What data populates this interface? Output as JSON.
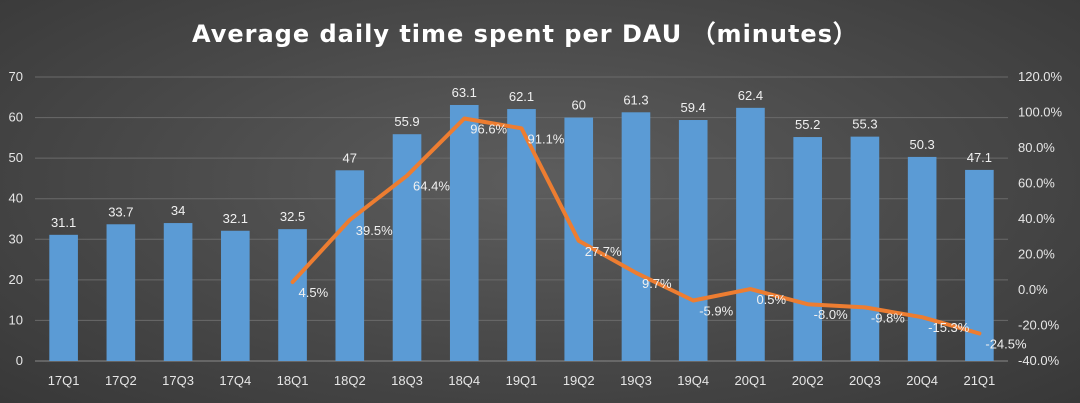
{
  "chart_data": {
    "type": "bar",
    "title": "Average daily time spent per DAU （minutes）",
    "categories": [
      "17Q1",
      "17Q2",
      "17Q3",
      "17Q4",
      "18Q1",
      "18Q2",
      "18Q3",
      "18Q4",
      "19Q1",
      "19Q2",
      "19Q3",
      "19Q4",
      "20Q1",
      "20Q2",
      "20Q3",
      "20Q4",
      "21Q1"
    ],
    "series": [
      {
        "type": "bar",
        "axis": "left",
        "color": "#5b9bd5",
        "values": [
          31.1,
          33.7,
          34,
          32.1,
          32.5,
          47,
          55.9,
          63.1,
          62.1,
          60,
          61.3,
          59.4,
          62.4,
          55.2,
          55.3,
          50.3,
          47.1
        ],
        "labels": [
          "31.1",
          "33.7",
          "34",
          "32.1",
          "32.5",
          "47",
          "55.9",
          "63.1",
          "62.1",
          "60",
          "61.3",
          "59.4",
          "62.4",
          "55.2",
          "55.3",
          "50.3",
          "47.1"
        ]
      },
      {
        "type": "line",
        "axis": "right",
        "color": "#ed7d31",
        "values": [
          null,
          null,
          null,
          null,
          4.5,
          39.5,
          64.4,
          96.6,
          91.1,
          27.7,
          9.7,
          -5.9,
          0.5,
          -8.0,
          -9.8,
          -15.3,
          -24.5
        ],
        "labels": [
          "",
          "",
          "",
          "",
          "4.5%",
          "39.5%",
          "64.4%",
          "96.6%",
          "91.1%",
          "27.7%",
          "9.7%",
          "-5.9%",
          "0.5%",
          "-8.0%",
          "-9.8%",
          "-15.3%",
          "-24.5%"
        ]
      }
    ],
    "y_left": {
      "min": 0,
      "max": 70,
      "ticks": [
        "0",
        "10",
        "20",
        "30",
        "40",
        "50",
        "60",
        "70"
      ]
    },
    "y_right": {
      "min": -40,
      "max": 120,
      "ticks": [
        "-40.0%",
        "-20.0%",
        "0.0%",
        "20.0%",
        "40.0%",
        "60.0%",
        "80.0%",
        "100.0%",
        "120.0%"
      ]
    },
    "grid": true,
    "legend": "none"
  }
}
